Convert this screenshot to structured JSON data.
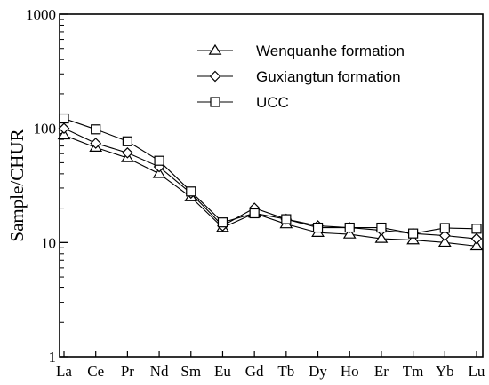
{
  "chart_data": {
    "type": "line",
    "title": "",
    "xlabel": "",
    "ylabel": "Sample/CHUR",
    "y_scale": "log",
    "ylim": [
      1,
      1000
    ],
    "y_ticks": [
      "1",
      "10",
      "100",
      "1000"
    ],
    "grid": false,
    "legend_position": "top-right",
    "categories": [
      "La",
      "Ce",
      "Pr",
      "Nd",
      "Sm",
      "Eu",
      "Gd",
      "Tb",
      "Dy",
      "Ho",
      "Er",
      "Tm",
      "Yb",
      "Lu"
    ],
    "series": [
      {
        "name": "Wenquanhe formation",
        "marker": "triangle-icon",
        "values": [
          87,
          68,
          55,
          40,
          25,
          13.5,
          18,
          14.5,
          12.2,
          11.8,
          10.8,
          10.5,
          10.0,
          9.3
        ]
      },
      {
        "name": "Guxiangtun formation",
        "marker": "diamond-icon",
        "values": [
          100,
          74,
          61,
          46,
          27,
          14,
          20,
          16,
          14,
          13.5,
          12.8,
          12,
          11.5,
          10.8
        ]
      },
      {
        "name": "UCC",
        "marker": "square-icon",
        "values": [
          122,
          98,
          77,
          52,
          28,
          15,
          18,
          16,
          13.5,
          13.5,
          13.5,
          12,
          13.4,
          13.2
        ]
      }
    ],
    "line_color": "#000000"
  }
}
